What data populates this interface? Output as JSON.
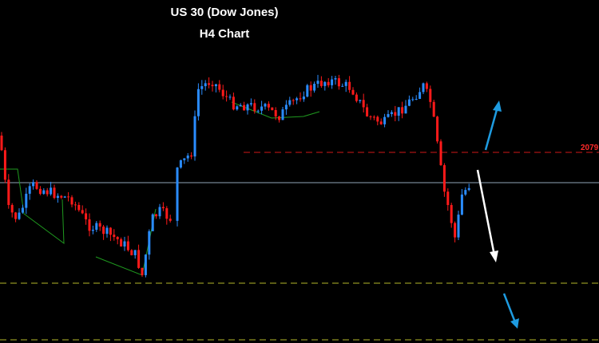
{
  "header": {
    "title": "US 30 (Dow Jones)",
    "subtitle": "H4 Chart"
  },
  "levels": {
    "resistance_label": "2079"
  }
}
